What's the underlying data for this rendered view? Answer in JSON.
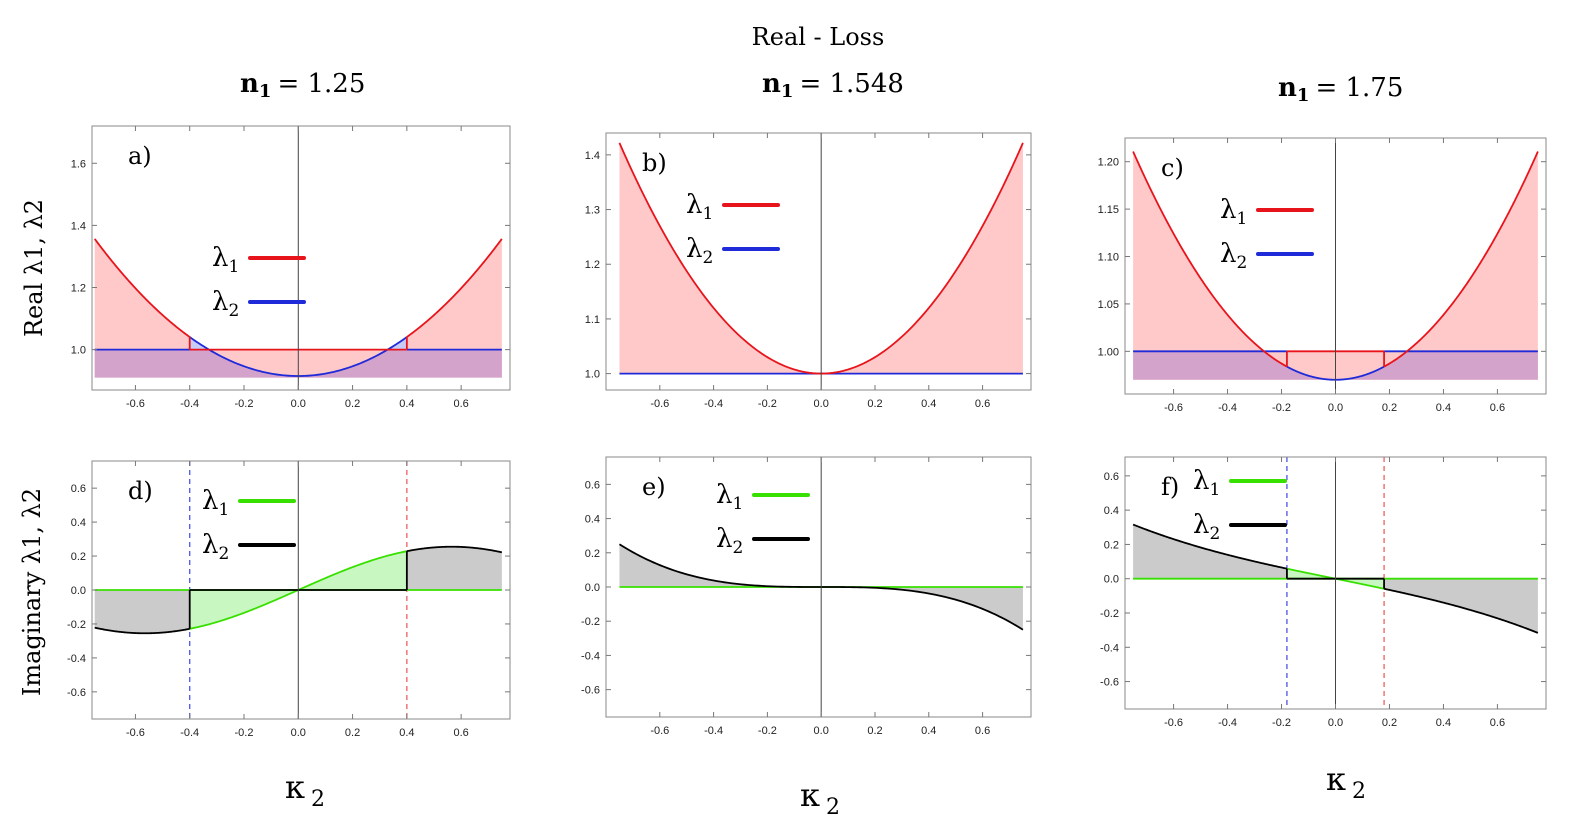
{
  "figure": {
    "main_title": "Real - Loss",
    "col_titles": [
      {
        "prefix": "n",
        "sub": "1",
        "value": "= 1.25"
      },
      {
        "prefix": "n",
        "sub": "1",
        "value": "= 1.548"
      },
      {
        "prefix": "n",
        "sub": "1",
        "value": "= 1.75"
      }
    ],
    "ylabel_top": "Real  λ1, λ2",
    "ylabel_bottom": "Imaginary λ1, λ2",
    "xlabel": {
      "symbol": "κ",
      "sub": "2"
    },
    "colors": {
      "real_l1": "#e8141c",
      "real_l2": "#1f2ad8",
      "fill_red": "#ffc9c9",
      "fill_blue": "#c7cbf6",
      "fill_purple": "#d4a3cc",
      "imag_l1": "#38e000",
      "imag_l2": "#000000",
      "fill_green": "#c9f7c1",
      "fill_gray": "#cbcbcb",
      "dash_blue": "#4b55e6",
      "dash_red": "#f06060"
    }
  },
  "chart_data": [
    {
      "id": "a",
      "panel_label": "a)",
      "type": "line",
      "part": "real",
      "n1": 1.25,
      "xlim": [
        -0.76,
        0.78
      ],
      "ylim": [
        0.87,
        1.72
      ],
      "xticks": [
        -0.6,
        -0.4,
        -0.2,
        0.0,
        0.2,
        0.4,
        0.6
      ],
      "xtick_labels": [
        "-0.6",
        "-0.4",
        "-0.2",
        "0.0",
        "0.2",
        "0.4",
        "0.6"
      ],
      "yticks": [
        1.0,
        1.2,
        1.4,
        1.6
      ],
      "ytick_labels": [
        "1.0",
        "1.2",
        "1.4",
        "1.6"
      ],
      "legend": [
        "λ1",
        "λ2"
      ],
      "model": {
        "base": 1.0,
        "dip": 0.915,
        "rise": 0.785,
        "eps": 0.4
      },
      "fill_floor": 0.91
    },
    {
      "id": "b",
      "panel_label": "b)",
      "type": "line",
      "part": "real",
      "n1": 1.548,
      "xlim": [
        -0.8,
        0.78
      ],
      "ylim": [
        0.97,
        1.44
      ],
      "xticks": [
        -0.6,
        -0.4,
        -0.2,
        0.0,
        0.2,
        0.4,
        0.6
      ],
      "xtick_labels": [
        "-0.6",
        "-0.4",
        "-0.2",
        "0.0",
        "0.2",
        "0.4",
        "0.6"
      ],
      "yticks": [
        1.0,
        1.1,
        1.2,
        1.3,
        1.4
      ],
      "ytick_labels": [
        "1.0",
        "1.1",
        "1.2",
        "1.3",
        "1.4"
      ],
      "legend": [
        "λ1",
        "λ2"
      ],
      "model": {
        "base": 1.0,
        "dip": 1.0,
        "rise": 0.75,
        "eps": 0.0
      },
      "fill_floor": 1.0
    },
    {
      "id": "c",
      "panel_label": "c)",
      "type": "line",
      "part": "real",
      "n1": 1.75,
      "xlim": [
        -0.78,
        0.78
      ],
      "ylim": [
        0.955,
        1.225
      ],
      "xticks": [
        -0.6,
        -0.4,
        -0.2,
        0.0,
        0.2,
        0.4,
        0.6
      ],
      "xtick_labels": [
        "-0.6",
        "-0.4",
        "-0.2",
        "0.0",
        "0.2",
        "0.4",
        "0.6"
      ],
      "yticks": [
        1.0,
        1.05,
        1.1,
        1.15,
        1.2
      ],
      "ytick_labels": [
        "1.00",
        "1.05",
        "1.10",
        "1.15",
        "1.20"
      ],
      "legend": [
        "λ1",
        "λ2"
      ],
      "model": {
        "base": 1.0,
        "dip": 0.97,
        "rise": 0.428,
        "eps": 0.18
      },
      "fill_floor": 0.97
    },
    {
      "id": "d",
      "panel_label": "d)",
      "type": "line",
      "part": "imag",
      "n1": 1.25,
      "xlim": [
        -0.76,
        0.78
      ],
      "ylim": [
        -0.76,
        0.76
      ],
      "xticks": [
        -0.6,
        -0.4,
        -0.2,
        0.0,
        0.2,
        0.4,
        0.6
      ],
      "xtick_labels": [
        "-0.6",
        "-0.4",
        "-0.2",
        "0.0",
        "0.2",
        "0.4",
        "0.6"
      ],
      "yticks": [
        -0.6,
        -0.4,
        -0.2,
        0.0,
        0.2,
        0.4,
        0.6
      ],
      "ytick_labels": [
        "-0.6",
        "-0.4",
        "-0.2",
        "0.0",
        "0.2",
        "0.4",
        "0.6"
      ],
      "legend": [
        "λ1",
        "λ2"
      ],
      "model": {
        "kind": "sine",
        "amp": 0.255,
        "period": 2.26,
        "eps": 0.4
      },
      "dashed": [
        -0.4,
        0.4
      ]
    },
    {
      "id": "e",
      "panel_label": "e)",
      "type": "line",
      "part": "imag",
      "n1": 1.548,
      "xlim": [
        -0.8,
        0.78
      ],
      "ylim": [
        -0.76,
        0.76
      ],
      "xticks": [
        -0.6,
        -0.4,
        -0.2,
        0.0,
        0.2,
        0.4,
        0.6
      ],
      "xtick_labels": [
        "-0.6",
        "-0.4",
        "-0.2",
        "0.0",
        "0.2",
        "0.4",
        "0.6"
      ],
      "yticks": [
        -0.6,
        -0.4,
        -0.2,
        0.0,
        0.2,
        0.4,
        0.6
      ],
      "ytick_labels": [
        "-0.6",
        "-0.4",
        "-0.2",
        "0.0",
        "0.2",
        "0.4",
        "0.6"
      ],
      "legend": [
        "λ1",
        "λ2"
      ],
      "model": {
        "kind": "cubic",
        "amp": 0.25,
        "eps": 0.0
      }
    },
    {
      "id": "f",
      "panel_label": "f)",
      "type": "line",
      "part": "imag",
      "n1": 1.75,
      "xlim": [
        -0.78,
        0.78
      ],
      "ylim": [
        -0.76,
        0.71
      ],
      "xticks": [
        -0.6,
        -0.4,
        -0.2,
        0.0,
        0.2,
        0.4,
        0.6
      ],
      "xtick_labels": [
        "-0.6",
        "-0.4",
        "-0.2",
        "0.0",
        "0.2",
        "0.4",
        "0.6"
      ],
      "yticks": [
        -0.6,
        -0.4,
        -0.2,
        0.0,
        0.2,
        0.4,
        0.6
      ],
      "ytick_labels": [
        "-0.6",
        "-0.4",
        "-0.2",
        "0.0",
        "0.2",
        "0.4",
        "0.6"
      ],
      "legend": [
        "λ1",
        "λ2"
      ],
      "model": {
        "kind": "poly",
        "a": -0.32,
        "b": -0.18,
        "eps": 0.18
      },
      "dashed": [
        -0.18,
        0.18
      ]
    }
  ]
}
